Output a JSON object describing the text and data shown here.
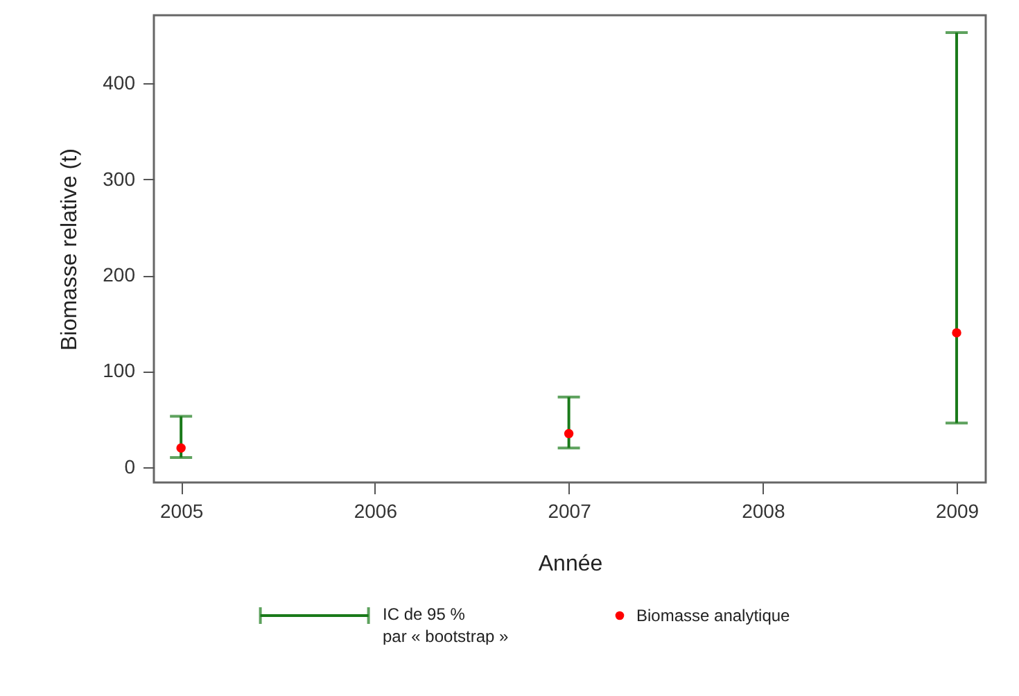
{
  "chart_data": {
    "type": "scatter",
    "xlabel": "Année",
    "ylabel": "Biomasse relative (t)",
    "x": [
      2005,
      2007,
      2009
    ],
    "series": [
      {
        "name": "Biomasse analytique",
        "color": "#ff0000",
        "values": [
          20,
          35,
          140
        ],
        "errors": [
          [
            10,
            53
          ],
          [
            20,
            73
          ],
          [
            46,
            453
          ]
        ]
      }
    ],
    "xlim": [
      2004.86,
      2009.15
    ],
    "xticks": [
      2005,
      2006,
      2007,
      2008,
      2009
    ],
    "ylim": [
      -16,
      471
    ],
    "yticks": [
      0,
      100,
      200,
      300,
      400
    ],
    "marker": "circle",
    "legend": "bottom",
    "grid": false,
    "annotations": [
      "IC de 95 %\npar « bootstrap »"
    ]
  }
}
